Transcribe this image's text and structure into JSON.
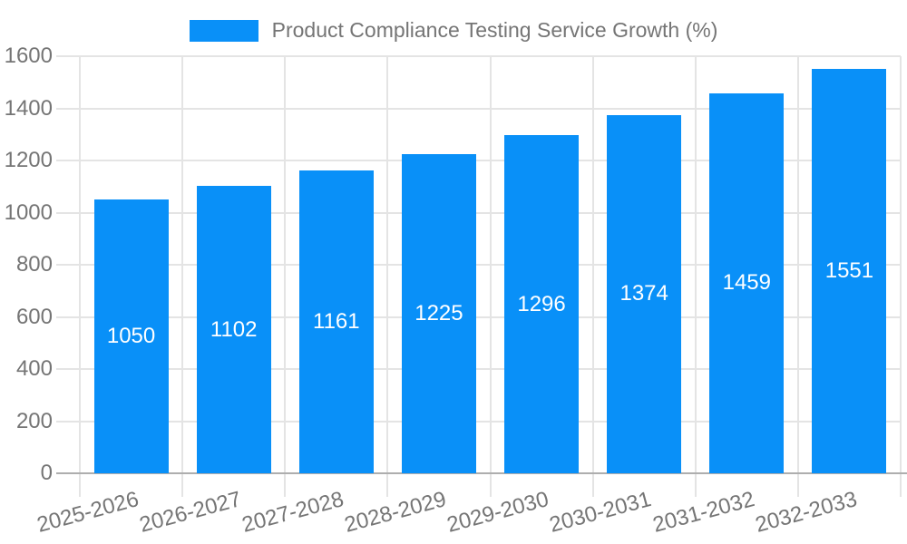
{
  "chart_data": {
    "type": "bar",
    "title": "Product Compliance Testing Service Growth (%)",
    "categories": [
      "2025-2026",
      "2026-2027",
      "2027-2028",
      "2028-2029",
      "2029-2030",
      "2030-2031",
      "2031-2032",
      "2032-2033"
    ],
    "values": [
      1050,
      1102,
      1161,
      1225,
      1296,
      1374,
      1459,
      1551
    ],
    "xlabel": "",
    "ylabel": "",
    "ylim": [
      0,
      1600
    ],
    "ytick_step": 200,
    "yticks": [
      0,
      200,
      400,
      600,
      800,
      1000,
      1200,
      1400,
      1600
    ],
    "grid": "on",
    "legend_position": "top",
    "bar_color": "#0990f8",
    "value_label_color": "#ffffff",
    "gridline_color": "#e4e4e4",
    "axis_color": "#aeaeae",
    "tick_label_color": "#757575"
  },
  "legend": {
    "label": "Product Compliance Testing Service Growth (%)",
    "swatch_color": "#0990f8"
  }
}
